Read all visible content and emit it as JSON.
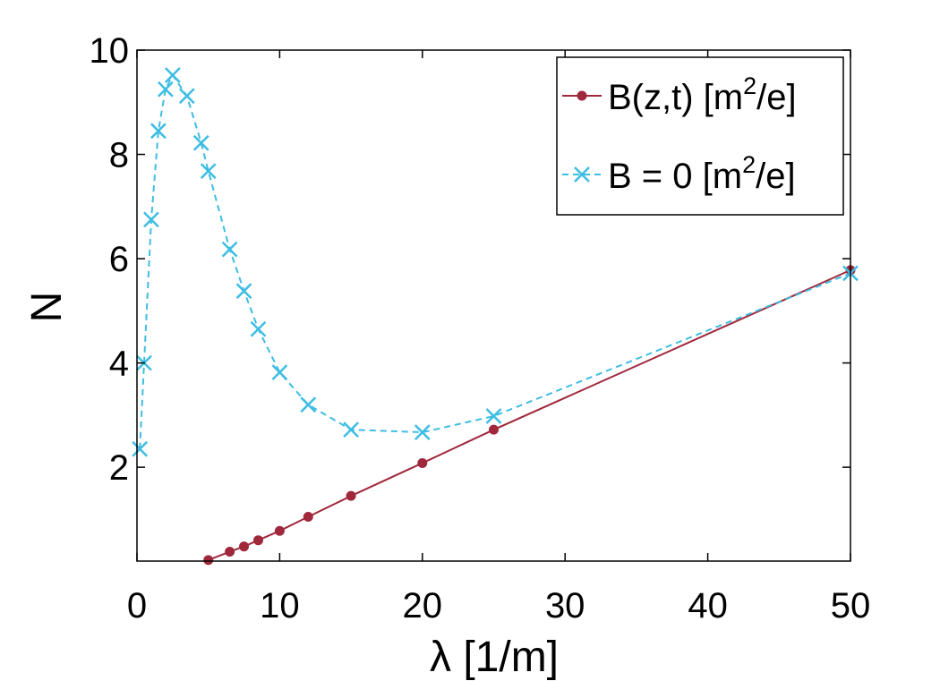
{
  "chart_data": {
    "type": "line",
    "xlabel": "λ [1/m]",
    "ylabel": "N",
    "xlim": [
      0,
      50
    ],
    "ylim": [
      0.2,
      10
    ],
    "xticks": [
      0,
      10,
      20,
      30,
      40,
      50
    ],
    "yticks": [
      2,
      4,
      6,
      8,
      10
    ],
    "grid": false,
    "legend_position": "top-right",
    "series": [
      {
        "name": "B(z,t) [m²/e]",
        "label_main": "B(z,t) [m",
        "label_sup": "2",
        "label_tail": "/e]",
        "color": "#a0283c",
        "marker": "dot",
        "line": "solid",
        "x": [
          5,
          6.5,
          7.5,
          8.5,
          10,
          12,
          15,
          20,
          25,
          50
        ],
        "y": [
          0.22,
          0.38,
          0.48,
          0.6,
          0.78,
          1.05,
          1.45,
          2.08,
          2.72,
          5.78
        ]
      },
      {
        "name": "B = 0 [m²/e]",
        "label_main": "B = 0 [m",
        "label_sup": "2",
        "label_tail": "/e]",
        "color": "#3ebde3",
        "marker": "x",
        "line": "dashed",
        "x": [
          0.2,
          0.5,
          1,
          1.5,
          2,
          2.5,
          3.5,
          4.5,
          5,
          6.5,
          7.5,
          8.5,
          10,
          12,
          15,
          20,
          25,
          50
        ],
        "y": [
          2.35,
          4.0,
          6.75,
          8.45,
          9.25,
          9.52,
          9.12,
          8.22,
          7.68,
          6.18,
          5.38,
          4.65,
          3.82,
          3.2,
          2.72,
          2.67,
          2.98,
          5.72
        ]
      }
    ]
  }
}
